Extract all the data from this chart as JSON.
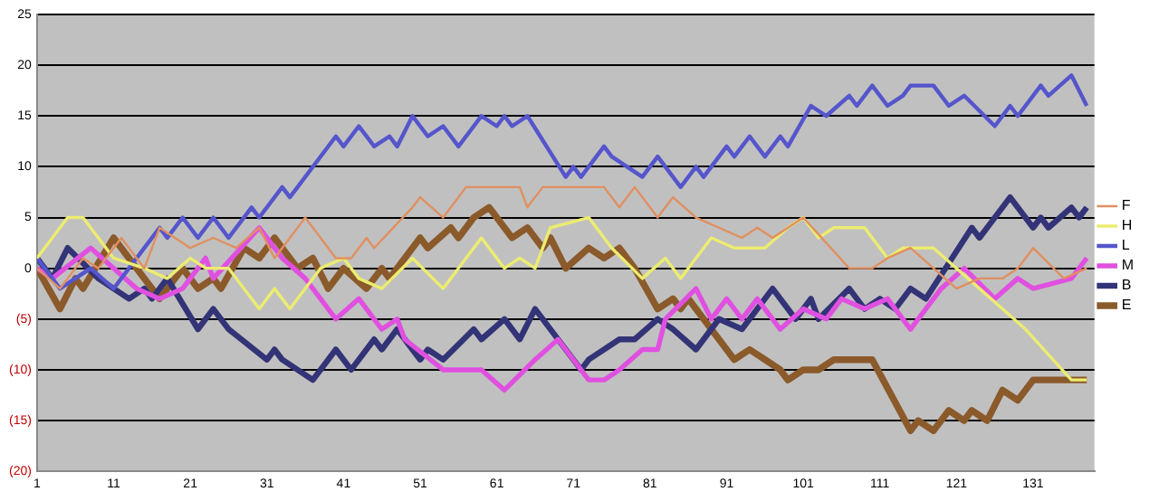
{
  "chart_data": {
    "type": "line",
    "xlim": [
      1,
      139
    ],
    "xticks": [
      1,
      11,
      21,
      31,
      41,
      51,
      61,
      71,
      81,
      91,
      101,
      111,
      121,
      131
    ],
    "ylim": [
      -20,
      25
    ],
    "yticks": [
      {
        "value": -20,
        "label": "(20)"
      },
      {
        "value": -15,
        "label": "(15)"
      },
      {
        "value": -10,
        "label": "(10)"
      },
      {
        "value": -5,
        "label": "(5)"
      },
      0,
      5,
      10,
      15,
      20,
      25
    ],
    "grid": "y",
    "legend": "right",
    "marker": "none",
    "line_style": "solid",
    "series": [
      {
        "name": "F",
        "color": "#e09060",
        "x": [
          1,
          4,
          7,
          9,
          12,
          15,
          17,
          19,
          21,
          24,
          27,
          30,
          32,
          36,
          40,
          42,
          44,
          45,
          50,
          51,
          54,
          57,
          64,
          65,
          67,
          75,
          77,
          79,
          82,
          84,
          87,
          90,
          93,
          95,
          97,
          99,
          101,
          107,
          110,
          112,
          115,
          118,
          121,
          124,
          127,
          129,
          131,
          135,
          138
        ],
        "values": [
          0,
          -2,
          1,
          0,
          3,
          0,
          4,
          3,
          2,
          3,
          2,
          4,
          1,
          5,
          1,
          1,
          3,
          2,
          6,
          7,
          5,
          8,
          8,
          6,
          8,
          8,
          6,
          8,
          5,
          7,
          5,
          4,
          3,
          4,
          3,
          4,
          5,
          0,
          0,
          1,
          2,
          0,
          -2,
          -1,
          -1,
          0,
          2,
          -1,
          0
        ]
      },
      {
        "name": "H",
        "color": "#ecec70",
        "x": [
          1,
          5,
          7,
          11,
          15,
          18,
          21,
          23,
          26,
          30,
          32,
          34,
          38,
          41,
          43,
          46,
          50,
          54,
          59,
          62,
          64,
          66,
          68,
          73,
          76,
          80,
          83,
          85,
          89,
          92,
          96,
          99,
          101,
          103,
          105,
          109,
          112,
          114,
          118,
          121,
          124,
          127,
          130,
          136,
          138
        ],
        "values": [
          1,
          5,
          5,
          1,
          0,
          -1,
          1,
          0,
          0,
          -4,
          -2,
          -4,
          0,
          1,
          -1,
          -2,
          1,
          -2,
          3,
          0,
          1,
          0,
          4,
          5,
          2,
          -1,
          1,
          -1,
          3,
          2,
          2,
          4,
          5,
          3,
          4,
          4,
          1,
          2,
          2,
          0,
          -2,
          -4,
          -6,
          -11,
          -11
        ]
      },
      {
        "name": "L",
        "color": "#5555cc",
        "x": [
          1,
          4,
          8,
          11,
          14,
          17,
          18,
          20,
          22,
          24,
          26,
          29,
          30,
          33,
          34,
          40,
          41,
          43,
          45,
          47,
          48,
          50,
          52,
          54,
          56,
          59,
          61,
          62,
          63,
          65,
          70,
          71,
          72,
          75,
          76,
          80,
          82,
          85,
          87,
          88,
          91,
          92,
          94,
          96,
          98,
          99,
          102,
          104,
          107,
          108,
          110,
          112,
          114,
          115,
          118,
          120,
          122,
          126,
          128,
          129,
          132,
          133,
          136,
          138
        ],
        "values": [
          1,
          -2,
          0,
          -2,
          1,
          4,
          3,
          5,
          3,
          5,
          3,
          6,
          5,
          8,
          7,
          13,
          12,
          14,
          12,
          13,
          12,
          15,
          13,
          14,
          12,
          15,
          14,
          15,
          14,
          15,
          9,
          10,
          9,
          12,
          11,
          9,
          11,
          8,
          10,
          9,
          12,
          11,
          13,
          11,
          13,
          12,
          16,
          15,
          17,
          16,
          18,
          16,
          17,
          18,
          18,
          16,
          17,
          14,
          16,
          15,
          18,
          17,
          19,
          16
        ]
      },
      {
        "name": "M",
        "color": "#e050e0",
        "x": [
          1,
          3,
          8,
          11,
          14,
          17,
          20,
          23,
          24,
          30,
          33,
          36,
          40,
          43,
          46,
          48,
          49,
          54,
          59,
          62,
          66,
          69,
          73,
          75,
          77,
          80,
          82,
          83,
          87,
          89,
          91,
          93,
          95,
          98,
          101,
          104,
          106,
          109,
          112,
          115,
          119,
          122,
          126,
          129,
          131,
          136,
          138
        ],
        "values": [
          0,
          -1,
          2,
          0,
          -2,
          -3,
          -2,
          1,
          -1,
          4,
          1,
          -1,
          -5,
          -3,
          -6,
          -5,
          -7,
          -10,
          -10,
          -12,
          -9,
          -7,
          -11,
          -11,
          -10,
          -8,
          -8,
          -5,
          -2,
          -5,
          -3,
          -5,
          -3,
          -6,
          -4,
          -5,
          -3,
          -4,
          -3,
          -6,
          -2,
          0,
          -3,
          -1,
          -2,
          -1,
          1
        ]
      },
      {
        "name": "B",
        "color": "#333377",
        "x": [
          1,
          3,
          5,
          9,
          13,
          15,
          16,
          18,
          22,
          24,
          26,
          31,
          32,
          33,
          37,
          40,
          42,
          45,
          46,
          48,
          51,
          52,
          54,
          58,
          59,
          62,
          64,
          66,
          72,
          73,
          77,
          79,
          82,
          84,
          87,
          90,
          93,
          97,
          100,
          102,
          103,
          107,
          109,
          111,
          113,
          115,
          117,
          123,
          124,
          128,
          131,
          132,
          133,
          136,
          137,
          138
        ],
        "values": [
          1,
          -1,
          2,
          -1,
          -3,
          -2,
          -3,
          -1,
          -6,
          -4,
          -6,
          -9,
          -8,
          -9,
          -11,
          -8,
          -10,
          -7,
          -8,
          -6,
          -9,
          -8,
          -9,
          -6,
          -7,
          -5,
          -7,
          -4,
          -10,
          -9,
          -7,
          -7,
          -5,
          -6,
          -8,
          -5,
          -6,
          -2,
          -5,
          -3,
          -5,
          -2,
          -4,
          -3,
          -4,
          -2,
          -3,
          4,
          3,
          7,
          4,
          5,
          4,
          6,
          5,
          6
        ]
      },
      {
        "name": "E",
        "color": "#8b5a2b",
        "x": [
          1,
          4,
          6,
          7,
          11,
          14,
          17,
          20,
          22,
          24,
          25,
          28,
          30,
          32,
          35,
          37,
          39,
          41,
          44,
          46,
          47,
          51,
          52,
          55,
          56,
          58,
          60,
          63,
          65,
          67,
          68,
          70,
          73,
          75,
          77,
          79,
          82,
          84,
          85,
          86,
          88,
          90,
          92,
          94,
          96,
          98,
          99,
          101,
          103,
          105,
          110,
          115,
          116,
          118,
          120,
          122,
          123,
          125,
          127,
          129,
          131,
          138
        ],
        "values": [
          0,
          -4,
          -1,
          -2,
          3,
          0,
          -3,
          0,
          -2,
          -1,
          -2,
          2,
          1,
          3,
          0,
          1,
          -2,
          0,
          -2,
          0,
          -1,
          3,
          2,
          4,
          3,
          5,
          6,
          3,
          4,
          2,
          3,
          0,
          2,
          1,
          2,
          0,
          -4,
          -3,
          -4,
          -3,
          -5,
          -7,
          -9,
          -8,
          -9,
          -10,
          -11,
          -10,
          -10,
          -9,
          -9,
          -16,
          -15,
          -16,
          -14,
          -15,
          -14,
          -15,
          -12,
          -13,
          -11,
          -11
        ]
      }
    ]
  }
}
